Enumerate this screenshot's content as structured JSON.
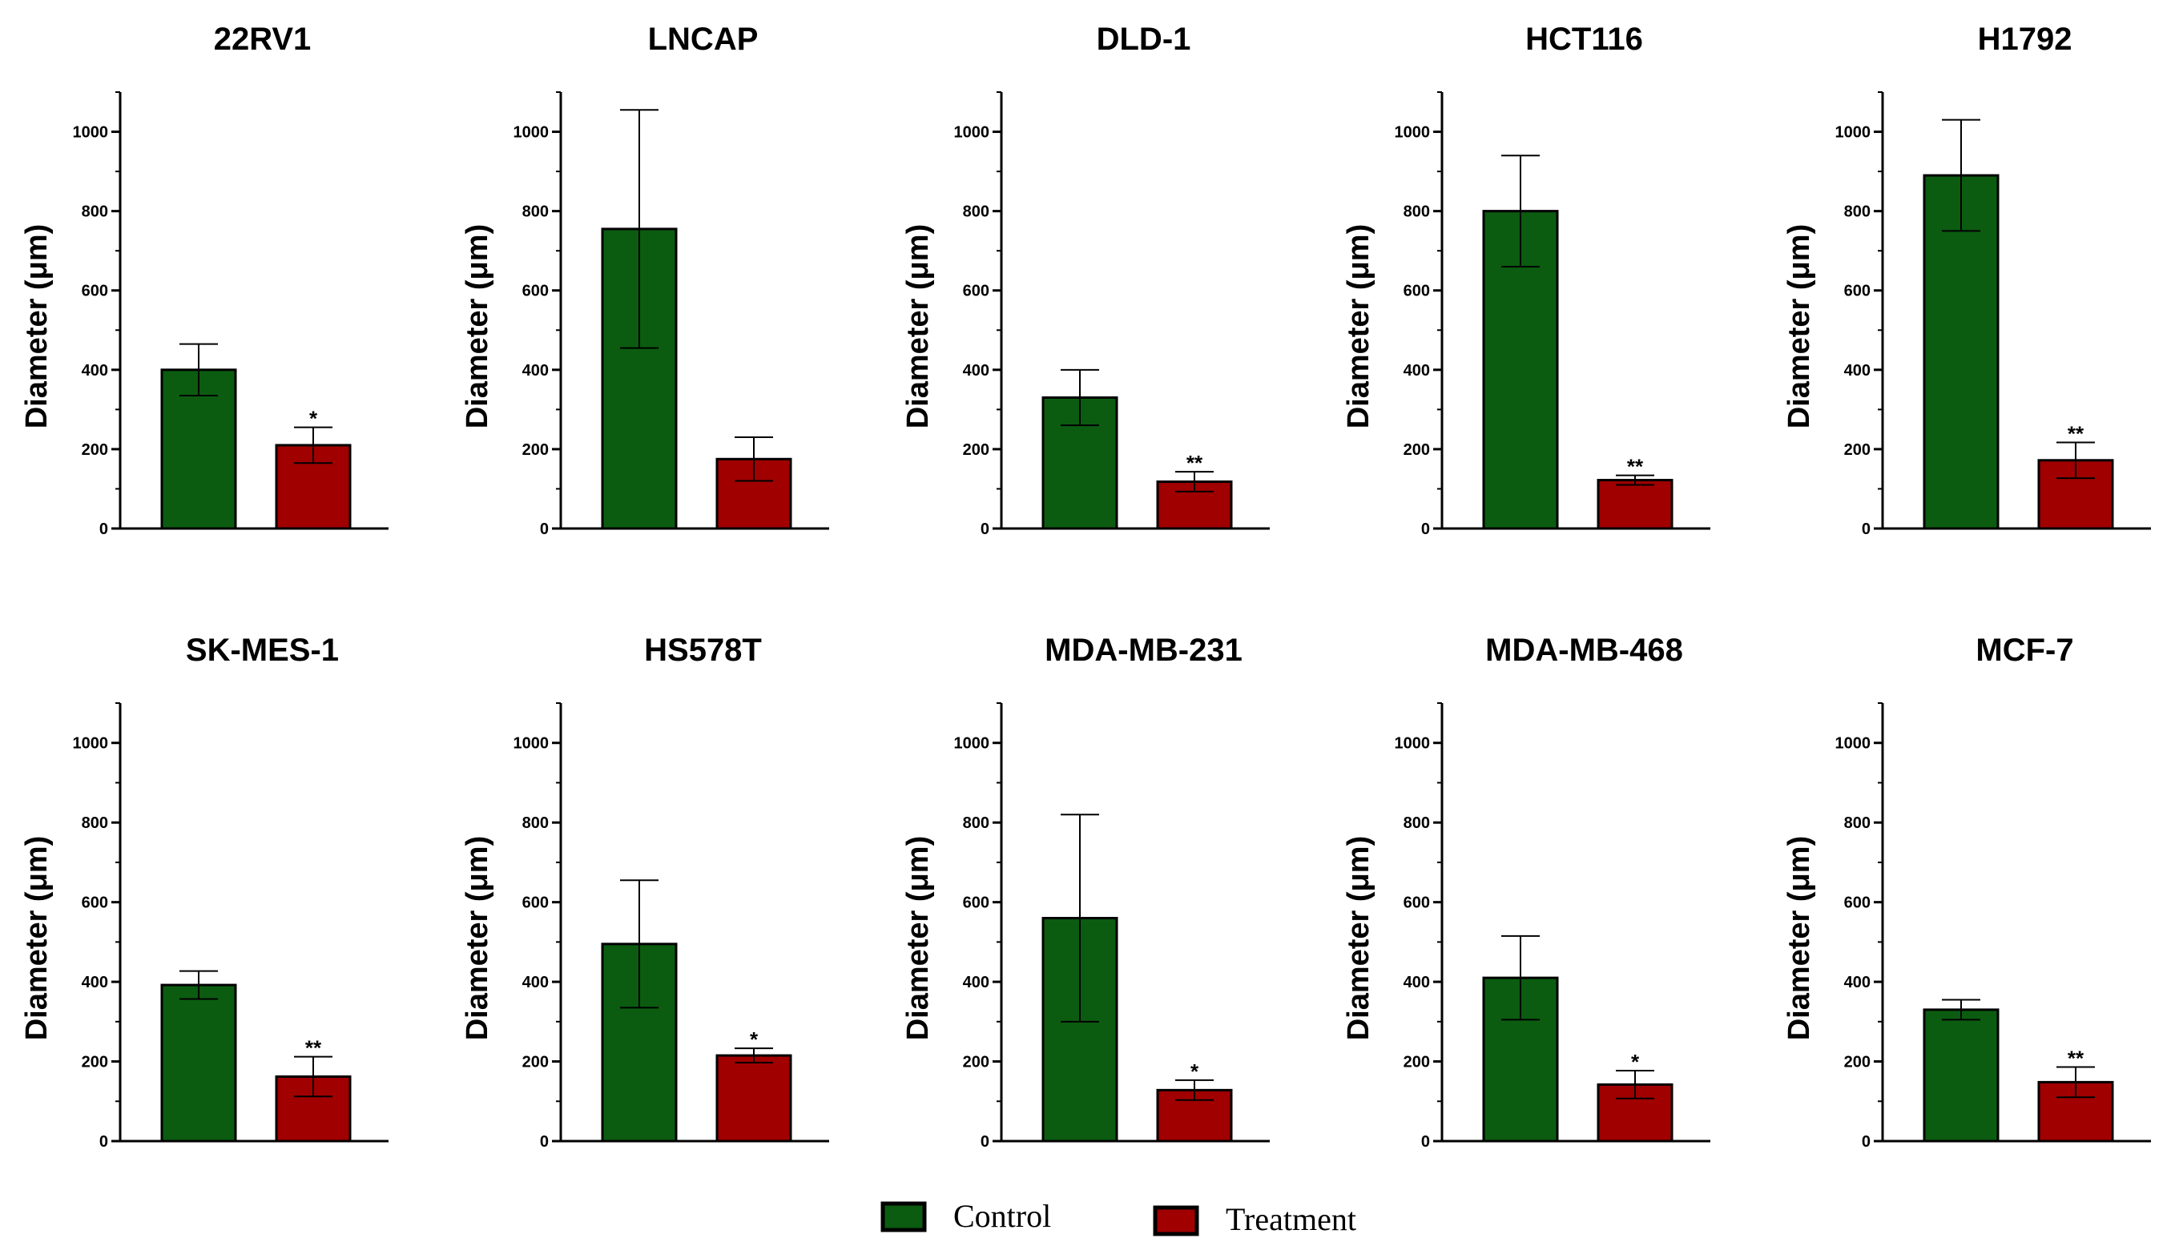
{
  "legend": {
    "items": [
      {
        "label": "Control",
        "color": "#0b5c10"
      },
      {
        "label": "Treatment",
        "color": "#a00000"
      }
    ]
  },
  "chart_data": [
    {
      "type": "bar",
      "title": "22RV1",
      "ylabel": "Diameter (μm)",
      "ylim": [
        0,
        1100
      ],
      "yticks": [
        0,
        200,
        400,
        600,
        800,
        1000
      ],
      "categories": [
        "Control",
        "Treatment"
      ],
      "series": [
        {
          "name": "Control",
          "value": 400,
          "error": 65
        },
        {
          "name": "Treatment",
          "value": 210,
          "error": 45
        }
      ],
      "significance": [
        "",
        "*"
      ]
    },
    {
      "type": "bar",
      "title": "LNCAP",
      "ylabel": "Diameter (μm)",
      "ylim": [
        0,
        1100
      ],
      "yticks": [
        0,
        200,
        400,
        600,
        800,
        1000
      ],
      "categories": [
        "Control",
        "Treatment"
      ],
      "series": [
        {
          "name": "Control",
          "value": 755,
          "error": 300
        },
        {
          "name": "Treatment",
          "value": 175,
          "error": 55
        }
      ],
      "significance": [
        "",
        ""
      ]
    },
    {
      "type": "bar",
      "title": "DLD-1",
      "ylabel": "Diameter (μm)",
      "ylim": [
        0,
        1100
      ],
      "yticks": [
        0,
        200,
        400,
        600,
        800,
        1000
      ],
      "categories": [
        "Control",
        "Treatment"
      ],
      "series": [
        {
          "name": "Control",
          "value": 330,
          "error": 70
        },
        {
          "name": "Treatment",
          "value": 118,
          "error": 25
        }
      ],
      "significance": [
        "",
        "**"
      ]
    },
    {
      "type": "bar",
      "title": "HCT116",
      "ylabel": "Diameter (μm)",
      "ylim": [
        0,
        1100
      ],
      "yticks": [
        0,
        200,
        400,
        600,
        800,
        1000
      ],
      "categories": [
        "Control",
        "Treatment"
      ],
      "series": [
        {
          "name": "Control",
          "value": 800,
          "error": 140
        },
        {
          "name": "Treatment",
          "value": 122,
          "error": 12
        }
      ],
      "significance": [
        "",
        "**"
      ]
    },
    {
      "type": "bar",
      "title": "H1792",
      "ylabel": "Diameter (μm)",
      "ylim": [
        0,
        1100
      ],
      "yticks": [
        0,
        200,
        400,
        600,
        800,
        1000
      ],
      "categories": [
        "Control",
        "Treatment"
      ],
      "series": [
        {
          "name": "Control",
          "value": 890,
          "error": 140
        },
        {
          "name": "Treatment",
          "value": 172,
          "error": 45
        }
      ],
      "significance": [
        "",
        "**"
      ]
    },
    {
      "type": "bar",
      "title": "SK-MES-1",
      "ylabel": "Diameter (μm)",
      "ylim": [
        0,
        1100
      ],
      "yticks": [
        0,
        200,
        400,
        600,
        800,
        1000
      ],
      "categories": [
        "Control",
        "Treatment"
      ],
      "series": [
        {
          "name": "Control",
          "value": 392,
          "error": 35
        },
        {
          "name": "Treatment",
          "value": 162,
          "error": 50
        }
      ],
      "significance": [
        "",
        "**"
      ]
    },
    {
      "type": "bar",
      "title": "HS578T",
      "ylabel": "Diameter (μm)",
      "ylim": [
        0,
        1100
      ],
      "yticks": [
        0,
        200,
        400,
        600,
        800,
        1000
      ],
      "categories": [
        "Control",
        "Treatment"
      ],
      "series": [
        {
          "name": "Control",
          "value": 495,
          "error": 160
        },
        {
          "name": "Treatment",
          "value": 215,
          "error": 18
        }
      ],
      "significance": [
        "",
        "*"
      ]
    },
    {
      "type": "bar",
      "title": "MDA-MB-231",
      "ylabel": "Diameter (μm)",
      "ylim": [
        0,
        1100
      ],
      "yticks": [
        0,
        200,
        400,
        600,
        800,
        1000
      ],
      "categories": [
        "Control",
        "Treatment"
      ],
      "series": [
        {
          "name": "Control",
          "value": 560,
          "error": 260
        },
        {
          "name": "Treatment",
          "value": 128,
          "error": 25
        }
      ],
      "significance": [
        "",
        "*"
      ]
    },
    {
      "type": "bar",
      "title": "MDA-MB-468",
      "ylabel": "Diameter (μm)",
      "ylim": [
        0,
        1100
      ],
      "yticks": [
        0,
        200,
        400,
        600,
        800,
        1000
      ],
      "categories": [
        "Control",
        "Treatment"
      ],
      "series": [
        {
          "name": "Control",
          "value": 410,
          "error": 105
        },
        {
          "name": "Treatment",
          "value": 142,
          "error": 35
        }
      ],
      "significance": [
        "",
        "*"
      ]
    },
    {
      "type": "bar",
      "title": "MCF-7",
      "ylabel": "Diameter (μm)",
      "ylim": [
        0,
        1100
      ],
      "yticks": [
        0,
        200,
        400,
        600,
        800,
        1000
      ],
      "categories": [
        "Control",
        "Treatment"
      ],
      "series": [
        {
          "name": "Control",
          "value": 330,
          "error": 25
        },
        {
          "name": "Treatment",
          "value": 148,
          "error": 38
        }
      ],
      "significance": [
        "",
        "**"
      ]
    }
  ]
}
